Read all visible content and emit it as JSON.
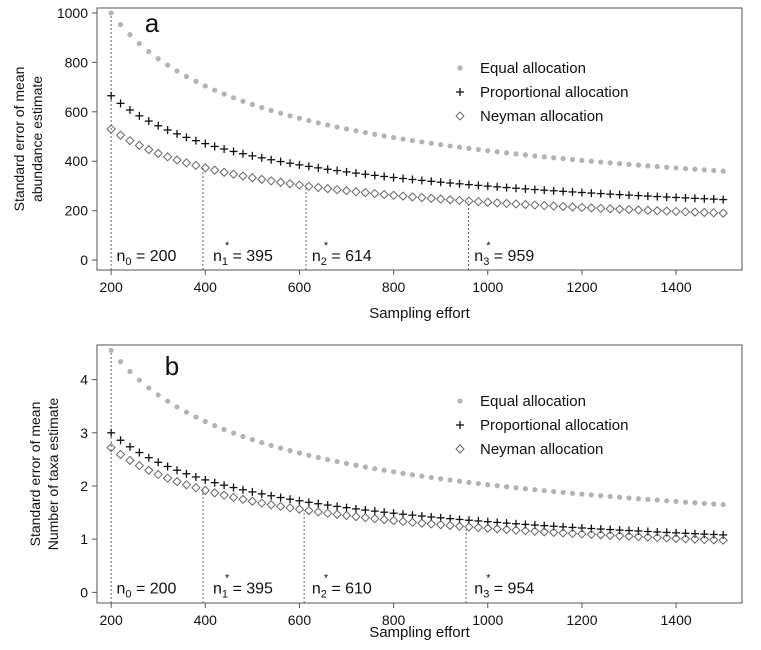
{
  "chart_data": [
    {
      "type": "scatter",
      "panel_label": "a",
      "xlabel": "Sampling effort",
      "ylabel": [
        "Standard error of mean",
        "abundance estimate"
      ],
      "xlim": [
        170,
        1540
      ],
      "ylim": [
        -40,
        1020
      ],
      "xticks": [
        200,
        400,
        600,
        800,
        1000,
        1200,
        1400
      ],
      "yticks": [
        0,
        200,
        400,
        600,
        800,
        1000
      ],
      "legend_position": "upper-right",
      "series": [
        {
          "name": "Equal allocation",
          "marker": "dot",
          "color": "#b3b3b3",
          "x_start": 200,
          "x_end": 1500,
          "x_step": 20,
          "y_start": 1000,
          "y_end": 360
        },
        {
          "name": "Proportional allocation",
          "marker": "plus",
          "color": "#111111",
          "x_start": 200,
          "x_end": 1500,
          "x_step": 20,
          "y_start": 665,
          "y_end": 245
        },
        {
          "name": "Neyman allocation",
          "marker": "diamond",
          "color": "#666666",
          "x_start": 200,
          "x_end": 1500,
          "x_step": 20,
          "y_start": 530,
          "y_end": 190
        }
      ],
      "vlines": [
        {
          "x": 200,
          "to_series": 0,
          "label_base": "n",
          "label_sub": "0",
          "label_sup": "",
          "label_value": " = 200",
          "label_x": 205,
          "label_y": 0
        },
        {
          "x": 395,
          "to_series": 2,
          "label_base": "n",
          "label_sub": "1",
          "label_sup": "*",
          "label_value": " = 395",
          "label_x": 410,
          "label_y": 0
        },
        {
          "x": 614,
          "to_series": 2,
          "label_base": "n",
          "label_sub": "2",
          "label_sup": "*",
          "label_value": " = 614",
          "label_x": 620,
          "label_y": 0
        },
        {
          "x": 959,
          "to_series": 2,
          "label_base": "n",
          "label_sub": "3",
          "label_sup": "*",
          "label_value": " = 959",
          "label_x": 965,
          "label_y": 0
        }
      ]
    },
    {
      "type": "scatter",
      "panel_label": "b",
      "xlabel": "Sampling effort",
      "ylabel": [
        "Standard error of mean",
        "Number of taxa estimate"
      ],
      "xlim": [
        170,
        1540
      ],
      "ylim": [
        -0.2,
        4.65
      ],
      "xticks": [
        200,
        400,
        600,
        800,
        1000,
        1200,
        1400
      ],
      "yticks": [
        0,
        1,
        2,
        3,
        4
      ],
      "legend_position": "upper-right",
      "series": [
        {
          "name": "Equal allocation",
          "marker": "dot",
          "color": "#b3b3b3",
          "x_start": 200,
          "x_end": 1500,
          "x_step": 20,
          "y_start": 4.55,
          "y_end": 1.65
        },
        {
          "name": "Proportional allocation",
          "marker": "plus",
          "color": "#111111",
          "x_start": 200,
          "x_end": 1500,
          "x_step": 20,
          "y_start": 3.0,
          "y_end": 1.08
        },
        {
          "name": "Neyman allocation",
          "marker": "diamond",
          "color": "#666666",
          "x_start": 200,
          "x_end": 1500,
          "x_step": 20,
          "y_start": 2.72,
          "y_end": 0.98
        }
      ],
      "vlines": [
        {
          "x": 200,
          "to_series": 0,
          "label_base": "n",
          "label_sub": "0",
          "label_sup": "",
          "label_value": " = 200",
          "label_x": 205,
          "label_y": 0
        },
        {
          "x": 395,
          "to_series": 2,
          "label_base": "n",
          "label_sub": "1",
          "label_sup": "*",
          "label_value": " = 395",
          "label_x": 410,
          "label_y": 0
        },
        {
          "x": 610,
          "to_series": 2,
          "label_base": "n",
          "label_sub": "2",
          "label_sup": "*",
          "label_value": " = 610",
          "label_x": 620,
          "label_y": 0
        },
        {
          "x": 954,
          "to_series": 2,
          "label_base": "n",
          "label_sub": "3",
          "label_sup": "*",
          "label_value": " = 954",
          "label_x": 965,
          "label_y": 0
        }
      ]
    }
  ]
}
